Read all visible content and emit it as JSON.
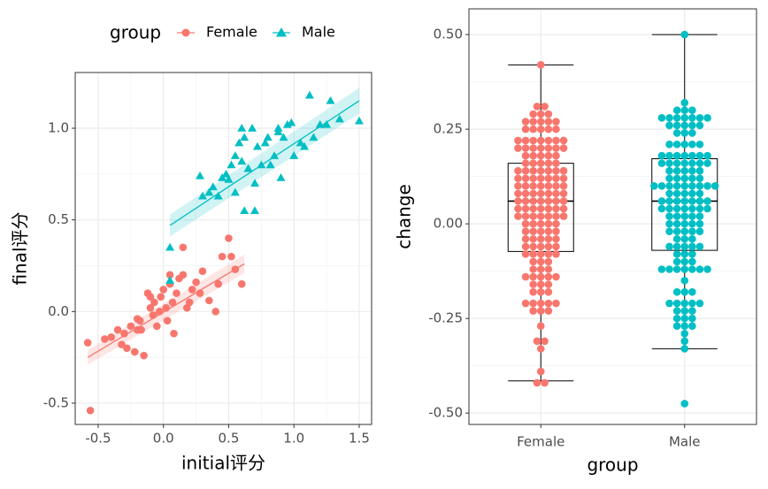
{
  "chart_data": [
    {
      "type": "scatter",
      "x_label": "initial评分",
      "y_label": "final评分",
      "legend_title": "group",
      "legend_position": "top",
      "xlim": [
        -0.676,
        1.595
      ],
      "ylim": [
        -0.616,
        1.304
      ],
      "xticks": [
        -0.5,
        {
          "value": 0,
          "label": "0.0"
        },
        0.5,
        {
          "value": 1,
          "label": "1.0"
        },
        1.5
      ],
      "yticks": [
        -0.5,
        {
          "value": 0,
          "label": "0.0"
        },
        0.5,
        {
          "value": 1,
          "label": "1.0"
        }
      ],
      "grid": true,
      "series": [
        {
          "name": "Female",
          "color": "#F8766D",
          "shape": "circle",
          "x": [
            -0.56,
            -0.58,
            -0.45,
            -0.4,
            -0.35,
            -0.32,
            -0.3,
            -0.28,
            -0.25,
            -0.22,
            -0.2,
            -0.18,
            -0.17,
            -0.15,
            -0.12,
            -0.1,
            -0.08,
            -0.07,
            -0.05,
            -0.03,
            -0.02,
            0.0,
            0.02,
            0.03,
            0.05,
            0.07,
            0.08,
            0.1,
            0.12,
            0.15,
            0.18,
            0.2,
            0.22,
            0.25,
            0.28,
            0.3,
            0.35,
            0.4,
            0.42,
            0.45,
            0.5,
            0.52,
            0.55,
            0.6,
            0.15,
            -0.1,
            0.05,
            -0.2
          ],
          "y": [
            -0.54,
            -0.17,
            -0.15,
            -0.14,
            -0.1,
            -0.18,
            -0.12,
            -0.2,
            -0.08,
            -0.22,
            -0.04,
            -0.05,
            -0.1,
            -0.24,
            0.1,
            0.02,
            -0.02,
            0.05,
            -0.08,
            0.0,
            0.08,
            0.12,
            0.02,
            -0.05,
            0.15,
            0.05,
            -0.12,
            0.1,
            0.18,
            0.2,
            0.02,
            0.05,
            0.12,
            0.16,
            0.1,
            0.22,
            0.06,
            0.0,
            0.15,
            0.3,
            0.4,
            0.3,
            0.23,
            0.15,
            0.35,
            0.08,
            0.2,
            -0.1
          ],
          "fit": {
            "x": [
              -0.58,
              0.62
            ],
            "y": [
              -0.25,
              0.26
            ],
            "lower": [
              -0.29,
              0.21
            ],
            "upper": [
              -0.21,
              0.31
            ]
          }
        },
        {
          "name": "Male",
          "color": "#00BFC4",
          "shape": "triangle",
          "x": [
            0.05,
            0.05,
            0.28,
            0.3,
            0.35,
            0.38,
            0.42,
            0.45,
            0.48,
            0.5,
            0.52,
            0.55,
            0.55,
            0.58,
            0.6,
            0.62,
            0.62,
            0.65,
            0.68,
            0.7,
            0.72,
            0.75,
            0.78,
            0.8,
            0.82,
            0.85,
            0.88,
            0.9,
            0.92,
            0.95,
            0.98,
            1.0,
            1.05,
            1.08,
            1.12,
            1.15,
            1.2,
            1.25,
            1.28,
            1.35,
            1.5,
            0.7,
            0.88,
            0.65,
            0.6
          ],
          "y": [
            0.17,
            0.35,
            0.74,
            0.63,
            0.65,
            0.68,
            0.63,
            0.73,
            0.75,
            0.72,
            0.8,
            0.85,
            0.65,
            0.92,
            0.82,
            0.95,
            0.55,
            0.78,
            1.0,
            0.55,
            0.9,
            0.8,
            0.92,
            0.95,
            0.8,
            0.85,
            1.0,
            0.73,
            0.95,
            1.02,
            1.03,
            0.85,
            0.92,
            0.9,
            1.18,
            0.95,
            1.02,
            1.02,
            1.15,
            1.05,
            1.04,
            0.7,
            0.98,
            0.78,
            1.0
          ],
          "fit": {
            "x": [
              0.05,
              1.5
            ],
            "y": [
              0.47,
              1.15
            ],
            "lower": [
              0.41,
              1.08
            ],
            "upper": [
              0.53,
              1.22
            ]
          }
        }
      ]
    },
    {
      "type": "box",
      "x_label": "group",
      "y_label": "change",
      "categories": [
        "Female",
        "Male"
      ],
      "ylim": [
        -0.53,
        0.568
      ],
      "yticks": [
        {
          "value": -0.5,
          "label": "-0.50"
        },
        -0.25,
        {
          "value": 0,
          "label": "0.00"
        },
        0.25,
        {
          "value": 0.5,
          "label": "0.50"
        }
      ],
      "grid": true,
      "boxes": [
        {
          "low": -0.415,
          "q1": -0.073,
          "median": 0.06,
          "q3": 0.16,
          "high": 0.42,
          "outliers": []
        },
        {
          "low": -0.33,
          "q1": -0.07,
          "median": 0.06,
          "q3": 0.172,
          "high": 0.5,
          "outliers": [
            -0.475
          ]
        }
      ],
      "series": [
        {
          "name": "Female",
          "color": "#F8766D",
          "values": [
            0.42,
            0.31,
            0.29,
            0.27,
            0.25,
            0.22,
            0.2,
            0.18,
            0.16,
            0.14,
            0.12,
            0.1,
            0.08,
            0.06,
            0.04,
            0.02,
            0.0,
            -0.02,
            -0.04,
            -0.06,
            -0.08,
            -0.1,
            -0.12,
            -0.14,
            -0.16,
            -0.18,
            -0.21,
            -0.23,
            -0.27,
            -0.31,
            -0.33,
            -0.39,
            -0.42
          ],
          "counts": [
            1,
            2,
            3,
            5,
            5,
            7,
            7,
            5,
            5,
            7,
            7,
            7,
            7,
            7,
            7,
            7,
            5,
            5,
            5,
            5,
            5,
            3,
            3,
            5,
            3,
            3,
            5,
            3,
            1,
            2,
            1,
            1,
            2
          ]
        },
        {
          "name": "Male",
          "color": "#00BFC4",
          "values": [
            0.5,
            0.32,
            0.3,
            0.28,
            0.26,
            0.24,
            0.21,
            0.18,
            0.16,
            0.14,
            0.12,
            0.1,
            0.08,
            0.06,
            0.04,
            0.02,
            0.0,
            -0.02,
            -0.04,
            -0.06,
            -0.08,
            -0.1,
            -0.12,
            -0.15,
            -0.18,
            -0.21,
            -0.23,
            -0.25,
            -0.27,
            -0.29,
            -0.31,
            -0.33,
            -0.475
          ],
          "counts": [
            1,
            1,
            3,
            7,
            5,
            3,
            5,
            7,
            7,
            5,
            5,
            9,
            5,
            7,
            7,
            5,
            5,
            5,
            3,
            5,
            3,
            3,
            7,
            1,
            3,
            5,
            3,
            3,
            3,
            1,
            1,
            1,
            1
          ]
        }
      ]
    }
  ]
}
